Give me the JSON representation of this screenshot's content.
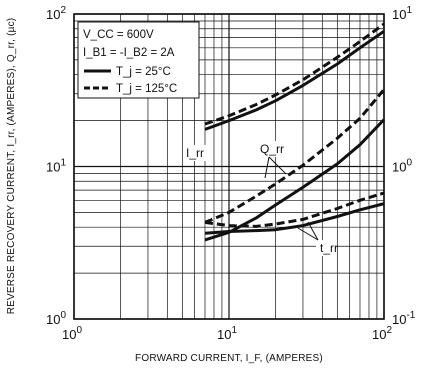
{
  "chart_data": {
    "type": "line",
    "x_scale": "log",
    "y_scale": "log",
    "y2_scale": "log",
    "xlim": [
      1,
      100
    ],
    "ylim": [
      1,
      100
    ],
    "y2lim": [
      0.1,
      10
    ],
    "grid": true,
    "legend_position": "top-left",
    "xlabel": "FORWARD CURRENT, I_F, (AMPERES)",
    "ylabel": "REVERSE RECOVERY CURRENT, I_rr, (AMPERES), Q_rr, (µc)",
    "x_ticks": [
      {
        "value": 1,
        "base": "10",
        "exp": "0"
      },
      {
        "value": 10,
        "base": "10",
        "exp": "1"
      },
      {
        "value": 100,
        "base": "10",
        "exp": "2"
      }
    ],
    "y_ticks": [
      {
        "value": 1,
        "base": "10",
        "exp": "0"
      },
      {
        "value": 10,
        "base": "10",
        "exp": "1"
      },
      {
        "value": 100,
        "base": "10",
        "exp": "2"
      }
    ],
    "y2_ticks": [
      {
        "value": 0.1,
        "base": "10",
        "exp": "-1"
      },
      {
        "value": 1,
        "base": "10",
        "exp": "0"
      },
      {
        "value": 10,
        "base": "10",
        "exp": "1"
      }
    ],
    "conditions": {
      "vcc": "V_CC = 600V",
      "ib": "I_B1 = -I_B2 = 2A"
    },
    "legend": [
      {
        "label": "T_j = 25°C",
        "style": "solid"
      },
      {
        "label": "T_j = 125°C",
        "style": "dashed"
      }
    ],
    "annotations": {
      "irr": "I_rr",
      "qrr": "Q_rr",
      "trr": "t_rr"
    },
    "series": [
      {
        "name": "I_rr, T_j = 25°C",
        "axis": "left",
        "style": "solid",
        "x": [
          7,
          10,
          15,
          20,
          30,
          50,
          70,
          100
        ],
        "y": [
          17.5,
          20,
          23.5,
          27,
          34,
          47,
          60,
          77
        ]
      },
      {
        "name": "I_rr, T_j = 125°C",
        "axis": "left",
        "style": "dashed",
        "x": [
          7,
          10,
          15,
          20,
          30,
          50,
          70,
          100
        ],
        "y": [
          19,
          21.5,
          25.5,
          29.5,
          37,
          52,
          66,
          86
        ]
      },
      {
        "name": "Q_rr, T_j = 25°C",
        "axis": "right",
        "style": "solid",
        "x": [
          7,
          10,
          15,
          20,
          30,
          50,
          70,
          100
        ],
        "y": [
          0.33,
          0.37,
          0.46,
          0.56,
          0.73,
          1.04,
          1.39,
          2.03
        ]
      },
      {
        "name": "Q_rr, T_j = 125°C",
        "axis": "right",
        "style": "dashed",
        "x": [
          7,
          10,
          15,
          20,
          30,
          50,
          70,
          100
        ],
        "y": [
          0.43,
          0.5,
          0.64,
          0.77,
          1.02,
          1.53,
          2.07,
          3.2
        ]
      },
      {
        "name": "t_rr, T_j = 25°C",
        "axis": "right",
        "style": "solid",
        "x": [
          7,
          10,
          15,
          20,
          30,
          50,
          70,
          100
        ],
        "y": [
          0.365,
          0.375,
          0.38,
          0.385,
          0.41,
          0.47,
          0.52,
          0.57
        ]
      },
      {
        "name": "t_rr, T_j = 125°C",
        "axis": "right",
        "style": "dashed",
        "x": [
          7,
          10,
          15,
          20,
          30,
          50,
          70,
          100
        ],
        "y": [
          0.43,
          0.41,
          0.405,
          0.42,
          0.45,
          0.53,
          0.6,
          0.67
        ]
      }
    ]
  }
}
